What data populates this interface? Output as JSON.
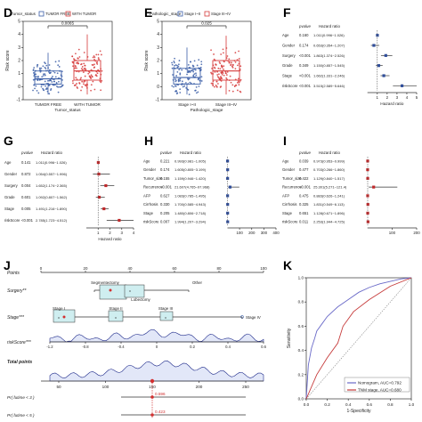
{
  "panel_labels": {
    "d": "D",
    "e": "E",
    "f": "F",
    "g": "G",
    "h": "H",
    "i": "I",
    "j": "J",
    "k": "K"
  },
  "colors": {
    "free": "#3b5ea7",
    "tumor": "#d63a3a",
    "stage_low": "#3b5ea7",
    "stage_high": "#d63a3a",
    "forest_point": "#2f4d9a",
    "forest_point_g": "#c0282a",
    "nomogram": "#6a6ac8",
    "tnm": "#c63b3b",
    "curve": "#1e2a8a"
  },
  "chart_data": [
    {
      "id": "D",
      "type": "box",
      "title": "Tumor_status",
      "legend": [
        "TUMOR FREE",
        "WITH TUMOR"
      ],
      "categories": [
        "TUMOR FREE",
        "WITH TUMOR"
      ],
      "xlabel": "Tumor_status",
      "ylabel": "Risk score",
      "ylim": [
        -1,
        5
      ],
      "yticks": [
        "-1",
        "0",
        "1",
        "2",
        "3",
        "4",
        "5"
      ],
      "pvalue": "0.0065",
      "series": [
        {
          "name": "TUMOR FREE",
          "min": -0.6,
          "q1": 0.2,
          "median": 0.6,
          "q3": 1.2,
          "max": 2.6
        },
        {
          "name": "WITH TUMOR",
          "min": -0.6,
          "q1": 0.5,
          "median": 1.2,
          "q3": 2.0,
          "max": 4.0
        }
      ]
    },
    {
      "id": "E",
      "type": "box",
      "title": "Pathologic_stage",
      "legend": [
        "Stage I~II",
        "Stage III~IV"
      ],
      "categories": [
        "Stage I~II",
        "Stage III~IV"
      ],
      "xlabel": "Pathologic_stage",
      "ylabel": "Risk score",
      "ylim": [
        -1,
        5
      ],
      "yticks": [
        "-1",
        "0",
        "1",
        "2",
        "3",
        "4",
        "5"
      ],
      "pvalue": "0.025",
      "series": [
        {
          "name": "Stage I~II",
          "min": -0.6,
          "q1": 0.2,
          "median": 0.7,
          "q3": 1.4,
          "max": 3.0
        },
        {
          "name": "Stage III~IV",
          "min": -0.6,
          "q1": 0.5,
          "median": 1.2,
          "q3": 2.0,
          "max": 3.9
        }
      ]
    },
    {
      "id": "F",
      "type": "forest",
      "col_pvalue": "pvalue",
      "col_hr": "Hazard ratio",
      "xlabel": "Hazard ratio",
      "xlim": [
        0,
        5
      ],
      "xticks": [
        "1",
        "2",
        "3",
        "4",
        "5"
      ],
      "rows": [
        {
          "label": "Age",
          "p": "0.160",
          "text": "1.011(0.996~1.026)",
          "hr": 1.011,
          "lo": 0.996,
          "hi": 1.026
        },
        {
          "label": "Gender",
          "p": "0.174",
          "text": "0.653(0.354~1.207)",
          "hr": 0.653,
          "lo": 0.354,
          "hi": 1.207
        },
        {
          "label": "Surgery",
          "p": "<0.001",
          "text": "1.863(1.374~2.526)",
          "hr": 1.863,
          "lo": 1.374,
          "hi": 2.526
        },
        {
          "label": "Grade",
          "p": "0.349",
          "text": "1.150(0.857~1.545)",
          "hr": 1.15,
          "lo": 0.857,
          "hi": 1.545
        },
        {
          "label": "Stage",
          "p": "<0.001",
          "text": "1.662(1.331~2.246)",
          "hr": 1.662,
          "lo": 1.331,
          "hi": 2.246
        },
        {
          "label": "riskScore",
          "p": "<0.001",
          "text": "3.515(2.589~5.646)",
          "hr": 3.515,
          "lo": 2.589,
          "hi": 5.646
        }
      ]
    },
    {
      "id": "G",
      "type": "forest",
      "col_pvalue": "pvalue",
      "col_hr": "Hazard ratio",
      "xlabel": "Hazard ratio",
      "xlim": [
        0,
        4
      ],
      "xticks": [
        "1",
        "2",
        "3",
        "4"
      ],
      "rows": [
        {
          "label": "Age",
          "p": "0.141",
          "text": "1.011(0.996~1.026)",
          "hr": 1.011,
          "lo": 0.996,
          "hi": 1.026
        },
        {
          "label": "Gender",
          "p": "0.872",
          "text": "1.054(0.557~1.996)",
          "hr": 1.054,
          "lo": 0.557,
          "hi": 1.996
        },
        {
          "label": "Surgery",
          "p": "0.004",
          "text": "1.652(1.174~2.365)",
          "hr": 1.652,
          "lo": 1.174,
          "hi": 2.365
        },
        {
          "label": "Grade",
          "p": "0.601",
          "text": "1.092(0.807~1.562)",
          "hr": 1.092,
          "lo": 0.807,
          "hi": 1.562
        },
        {
          "label": "Stage",
          "p": "0.005",
          "text": "1.491(1.216~1.890)",
          "hr": 1.491,
          "lo": 1.216,
          "hi": 1.89
        },
        {
          "label": "riskScore",
          "p": "<0.001",
          "text": "2.785(1.723~4.512)",
          "hr": 2.785,
          "lo": 1.723,
          "hi": 4.512
        }
      ]
    },
    {
      "id": "H",
      "type": "forest",
      "col_pvalue": "pvalue",
      "col_hr": "Hazard ratio",
      "xlabel": "",
      "xlim": [
        0,
        400
      ],
      "xticks": [
        "100",
        "200",
        "300",
        "400"
      ],
      "rows": [
        {
          "label": "Age",
          "p": "0.221",
          "text": "0.993(0.981~1.005)",
          "hr": 0.993,
          "lo": 0.981,
          "hi": 1.005
        },
        {
          "label": "Gender",
          "p": "0.174",
          "text": "1.605(0.805~3.199)",
          "hr": 1.605,
          "lo": 0.805,
          "hi": 3.199
        },
        {
          "label": "Tumor_size",
          "p": "0.155",
          "text": "1.159(0.946~1.420)",
          "hr": 1.159,
          "lo": 0.946,
          "hi": 1.42
        },
        {
          "label": "Recurrence",
          "p": "<0.001",
          "text": "21.607(4.765~97.968)",
          "hr": 21.607,
          "lo": 4.765,
          "hi": 97.968
        },
        {
          "label": "AFP",
          "p": "0.627",
          "text": "1.083(0.785~1.495)",
          "hr": 1.083,
          "lo": 0.785,
          "hi": 1.495
        },
        {
          "label": "Cirrhosis",
          "p": "0.330",
          "text": "1.700(0.585~4.943)",
          "hr": 1.7,
          "lo": 0.585,
          "hi": 4.943
        },
        {
          "label": "Stage",
          "p": "0.205",
          "text": "1.480(0.806~2.718)",
          "hr": 1.48,
          "lo": 0.806,
          "hi": 2.718
        },
        {
          "label": "riskScore",
          "p": "0.007",
          "text": "1.994(1.207~3.294)",
          "hr": 1.994,
          "lo": 1.207,
          "hi": 3.294
        }
      ]
    },
    {
      "id": "I",
      "type": "forest",
      "col_pvalue": "pvalue",
      "col_hr": "Hazard ratio",
      "xlabel": "",
      "xlim": [
        0,
        200
      ],
      "xticks": [
        "100",
        "200"
      ],
      "rows": [
        {
          "label": "Age",
          "p": "0.039",
          "text": "0.973(0.953~0.999)",
          "hr": 0.973,
          "lo": 0.953,
          "hi": 0.999
        },
        {
          "label": "Gender",
          "p": "0.477",
          "text": "0.703(0.266~1.860)",
          "hr": 0.703,
          "lo": 0.266,
          "hi": 1.86
        },
        {
          "label": "Tumor_size",
          "p": "0.422",
          "text": "1.129(0.840~1.517)",
          "hr": 1.129,
          "lo": 0.84,
          "hi": 1.517
        },
        {
          "label": "Recurrence",
          "p": "<0.001",
          "text": "25.301(5.271~121.4)",
          "hr": 25.301,
          "lo": 5.271,
          "hi": 121.4
        },
        {
          "label": "AFP",
          "p": "0.475",
          "text": "0.883(0.626~1.241)",
          "hr": 0.883,
          "lo": 0.626,
          "hi": 1.241
        },
        {
          "label": "Cirrhosis",
          "p": "0.325",
          "text": "1.831(0.549~6.113)",
          "hr": 1.831,
          "lo": 0.549,
          "hi": 6.113
        },
        {
          "label": "Stage",
          "p": "0.651",
          "text": "1.128(0.671~1.896)",
          "hr": 1.128,
          "lo": 0.671,
          "hi": 1.896
        },
        {
          "label": "riskScore",
          "p": "0.011",
          "text": "2.253(1.944~4.725)",
          "hr": 2.253,
          "lo": 1.944,
          "hi": 4.725
        }
      ]
    },
    {
      "id": "J",
      "type": "nomogram",
      "points_label": "Points",
      "points_ticks": [
        "0",
        "20",
        "40",
        "60",
        "80",
        "100"
      ],
      "surgery_label": "Surgery**",
      "surgery_options": [
        "Segmentectomy",
        "Lobectomy",
        "Other"
      ],
      "stage_label": "Stage***",
      "stage_options": [
        "Stage I",
        "Stage II",
        "Stage III",
        "Stage IV"
      ],
      "risk_label": "riskScore***",
      "risk_ticks": [
        "-1.2",
        "-0.8",
        "-0.4",
        "0",
        "0.2",
        "0.4",
        "0.6"
      ],
      "total_label": "Total points",
      "total_ticks": [
        "50",
        "100",
        "150",
        "200",
        "250"
      ],
      "total_value": "150",
      "prob1_label": "Pr( futime < 3 )",
      "prob1_value": "0.596",
      "prob2_label": "Pr( futime < 5 )",
      "prob2_value": "0.423"
    },
    {
      "id": "K",
      "type": "line",
      "xlabel": "1-Specificity",
      "ylabel": "Sensitivity",
      "xlim": [
        0,
        1
      ],
      "ylim": [
        0,
        1
      ],
      "xticks": [
        "0.0",
        "0.2",
        "0.4",
        "0.6",
        "0.8",
        "1.0"
      ],
      "yticks": [
        "0.0",
        "0.2",
        "0.4",
        "0.6",
        "0.8",
        "1.0"
      ],
      "series": [
        {
          "name": "Nomogram, AUC=0.792",
          "points": [
            [
              0,
              0
            ],
            [
              0.02,
              0.28
            ],
            [
              0.05,
              0.42
            ],
            [
              0.08,
              0.5
            ],
            [
              0.1,
              0.56
            ],
            [
              0.15,
              0.62
            ],
            [
              0.2,
              0.68
            ],
            [
              0.3,
              0.76
            ],
            [
              0.4,
              0.82
            ],
            [
              0.5,
              0.88
            ],
            [
              0.6,
              0.92
            ],
            [
              0.7,
              0.95
            ],
            [
              0.8,
              0.97
            ],
            [
              0.9,
              0.99
            ],
            [
              1,
              1
            ]
          ]
        },
        {
          "name": "TNM stage, AUC=0.680",
          "points": [
            [
              0,
              0
            ],
            [
              0.1,
              0.2
            ],
            [
              0.2,
              0.34
            ],
            [
              0.3,
              0.46
            ],
            [
              0.35,
              0.6
            ],
            [
              0.45,
              0.72
            ],
            [
              0.6,
              0.82
            ],
            [
              0.8,
              0.93
            ],
            [
              1,
              1
            ]
          ]
        }
      ]
    }
  ]
}
